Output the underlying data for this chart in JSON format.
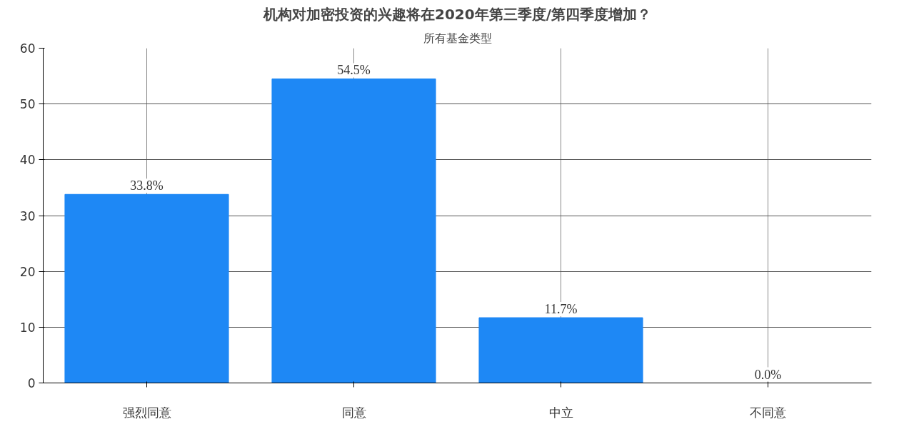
{
  "chart_data": {
    "type": "bar",
    "title": "机构对加密投资的兴趣将在2020年第三季度/第四季度增加？",
    "subtitle": "所有基金类型",
    "categories": [
      "强烈同意",
      "同意",
      "中立",
      "不同意"
    ],
    "values": [
      33.8,
      54.5,
      11.7,
      0.0
    ],
    "value_labels": [
      "33.8%",
      "54.5%",
      "11.7%",
      "0.0%"
    ],
    "color": "#1e88f5",
    "ylim": [
      0,
      60
    ],
    "yticks": [
      0,
      10,
      20,
      30,
      40,
      50,
      60
    ],
    "grid": true
  }
}
